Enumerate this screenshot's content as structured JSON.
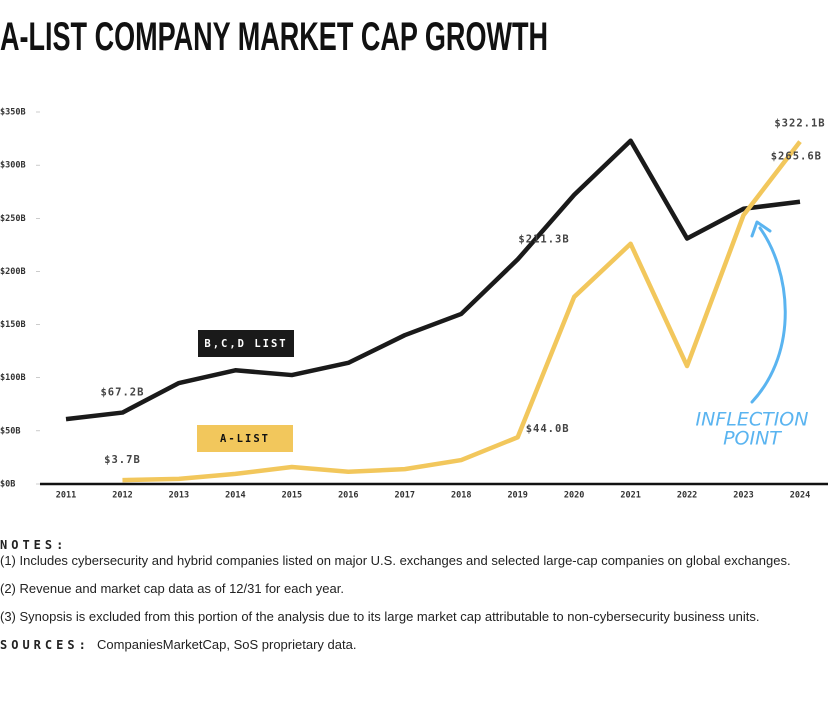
{
  "chart_data": {
    "type": "line",
    "title": "A-LIST COMPANY MARKET CAP GROWTH",
    "categories": [
      "2011",
      "2012",
      "2013",
      "2014",
      "2015",
      "2016",
      "2017",
      "2018",
      "2019",
      "2020",
      "2021",
      "2022",
      "2023",
      "2024"
    ],
    "series": [
      {
        "name": "B,C,D LIST",
        "color": "#1a1a1a",
        "values": [
          61,
          67.2,
          95,
          107,
          102.5,
          114,
          140,
          160,
          211.3,
          272,
          323,
          231,
          259,
          265.6
        ],
        "value_labels": [
          null,
          "$67.2B",
          null,
          null,
          null,
          null,
          null,
          null,
          "$211.3B",
          null,
          null,
          null,
          null,
          "$265.6B"
        ]
      },
      {
        "name": "A-LIST",
        "color": "#f2c75c",
        "values": [
          null,
          3.7,
          4.8,
          9.5,
          16,
          11.5,
          14,
          22.5,
          44.0,
          176,
          226,
          111,
          253,
          322.1
        ],
        "value_labels": [
          null,
          "$3.7B",
          null,
          null,
          null,
          null,
          null,
          null,
          "$44.0B",
          null,
          null,
          null,
          null,
          "$322.1B"
        ]
      }
    ],
    "ylim": [
      0,
      350
    ],
    "yticks": [
      {
        "value": 0,
        "label": "$0B"
      },
      {
        "value": 50,
        "label": "$50B"
      },
      {
        "value": 100,
        "label": "$100B"
      },
      {
        "value": 150,
        "label": "$150B"
      },
      {
        "value": 200,
        "label": "$200B"
      },
      {
        "value": 250,
        "label": "$250B"
      },
      {
        "value": 300,
        "label": "$300B"
      },
      {
        "value": 350,
        "label": "$350B"
      }
    ],
    "annotation_lines": [
      "INFLECTION",
      "POINT"
    ],
    "annotation_color": "#5ab4f0"
  },
  "notes": {
    "heading": "NOTES:",
    "items": [
      "(1) Includes cybersecurity and hybrid companies listed on major U.S. exchanges and selected large-cap companies on global exchanges.",
      "(2) Revenue and market cap data as of 12/31 for each year.",
      "(3) Synopsis is excluded from this portion of the analysis due to its large market cap attributable to non-cybersecurity business units."
    ],
    "sources_label": "SOURCES:",
    "sources": "CompaniesMarketCap, SoS proprietary data."
  }
}
